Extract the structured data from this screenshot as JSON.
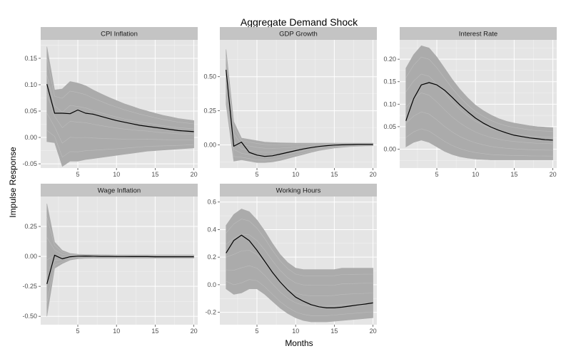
{
  "figure": {
    "title": "Aggregate Demand Shock",
    "xlabel": "Months",
    "ylabel": "Impulse Response"
  },
  "colors": {
    "panel_bg": "#e5e5e5",
    "grid": "#ffffff",
    "strip_bg": "#c4c4c4",
    "band": "#ababab",
    "median": "#000000"
  },
  "chart_data": [
    {
      "type": "line",
      "facet": "CPI Inflation",
      "x": [
        1,
        2,
        3,
        4,
        5,
        6,
        7,
        8,
        9,
        10,
        11,
        12,
        13,
        14,
        15,
        16,
        17,
        18,
        19,
        20
      ],
      "xlim": [
        0.2,
        20.5
      ],
      "xticks": [
        5,
        10,
        15,
        20
      ],
      "ylim": [
        -0.058,
        0.185
      ],
      "yticks": [
        -0.05,
        0.0,
        0.05,
        0.1,
        0.15
      ],
      "ytick_labels": [
        "-0.05",
        "0.00",
        "0.05",
        "0.10",
        "0.15"
      ],
      "series": [
        {
          "role": "median",
          "values": [
            0.101,
            0.046,
            0.046,
            0.045,
            0.052,
            0.046,
            0.044,
            0.04,
            0.036,
            0.032,
            0.029,
            0.026,
            0.023,
            0.021,
            0.019,
            0.017,
            0.015,
            0.013,
            0.012,
            0.011
          ]
        },
        {
          "role": "band_upper",
          "values": [
            0.172,
            0.09,
            0.092,
            0.106,
            0.103,
            0.098,
            0.09,
            0.083,
            0.076,
            0.07,
            0.064,
            0.059,
            0.054,
            0.05,
            0.046,
            0.042,
            0.039,
            0.036,
            0.034,
            0.032
          ]
        },
        {
          "role": "band_lower",
          "values": [
            -0.008,
            -0.01,
            -0.055,
            -0.045,
            -0.045,
            -0.042,
            -0.04,
            -0.038,
            -0.036,
            -0.034,
            -0.032,
            -0.03,
            -0.028,
            -0.026,
            -0.025,
            -0.024,
            -0.023,
            -0.022,
            -0.021,
            -0.02
          ]
        }
      ]
    },
    {
      "type": "line",
      "facet": "GDP Growth",
      "x": [
        1,
        2,
        3,
        4,
        5,
        6,
        7,
        8,
        9,
        10,
        11,
        12,
        13,
        14,
        15,
        16,
        17,
        18,
        19,
        20
      ],
      "xlim": [
        0.2,
        20.5
      ],
      "xticks": [
        5,
        10,
        15,
        20
      ],
      "ylim": [
        -0.17,
        0.77
      ],
      "yticks": [
        0.0,
        0.25,
        0.5
      ],
      "ytick_labels": [
        "0.00",
        "0.25",
        "0.50"
      ],
      "series": [
        {
          "role": "median",
          "values": [
            0.55,
            -0.01,
            0.02,
            -0.055,
            -0.075,
            -0.085,
            -0.08,
            -0.068,
            -0.055,
            -0.042,
            -0.03,
            -0.02,
            -0.012,
            -0.006,
            -0.002,
            0.0,
            0.002,
            0.003,
            0.003,
            0.003
          ]
        },
        {
          "role": "band_upper",
          "values": [
            0.7,
            0.17,
            0.05,
            0.04,
            0.03,
            0.02,
            0.017,
            0.015,
            0.014,
            0.013,
            0.012,
            0.012,
            0.012,
            0.012,
            0.012,
            0.012,
            0.012,
            0.012,
            0.012,
            0.012
          ]
        },
        {
          "role": "band_lower",
          "values": [
            0.3,
            -0.12,
            -0.11,
            -0.12,
            -0.13,
            -0.13,
            -0.125,
            -0.115,
            -0.1,
            -0.085,
            -0.07,
            -0.055,
            -0.042,
            -0.032,
            -0.024,
            -0.018,
            -0.013,
            -0.01,
            -0.008,
            -0.007
          ]
        }
      ]
    },
    {
      "type": "line",
      "facet": "Interest Rate",
      "x": [
        1,
        2,
        3,
        4,
        5,
        6,
        7,
        8,
        9,
        10,
        11,
        12,
        13,
        14,
        15,
        16,
        17,
        18,
        19,
        20
      ],
      "xlim": [
        0.2,
        20.5
      ],
      "xticks": [
        5,
        10,
        15,
        20
      ],
      "ylim": [
        -0.042,
        0.243
      ],
      "yticks": [
        0.0,
        0.05,
        0.1,
        0.15,
        0.2
      ],
      "ytick_labels": [
        "0.00",
        "0.05",
        "0.10",
        "0.15",
        "0.20"
      ],
      "series": [
        {
          "role": "median",
          "values": [
            0.063,
            0.112,
            0.143,
            0.148,
            0.143,
            0.131,
            0.115,
            0.098,
            0.083,
            0.069,
            0.058,
            0.049,
            0.042,
            0.036,
            0.031,
            0.028,
            0.025,
            0.023,
            0.021,
            0.02
          ]
        },
        {
          "role": "band_upper",
          "values": [
            0.18,
            0.21,
            0.23,
            0.225,
            0.205,
            0.18,
            0.155,
            0.133,
            0.114,
            0.098,
            0.086,
            0.076,
            0.068,
            0.062,
            0.058,
            0.055,
            0.052,
            0.05,
            0.049,
            0.048
          ]
        },
        {
          "role": "band_lower",
          "values": [
            0.005,
            0.015,
            0.02,
            0.015,
            0.005,
            -0.005,
            -0.012,
            -0.017,
            -0.02,
            -0.022,
            -0.023,
            -0.024,
            -0.024,
            -0.024,
            -0.024,
            -0.024,
            -0.024,
            -0.024,
            -0.024,
            -0.024
          ]
        }
      ]
    },
    {
      "type": "line",
      "facet": "Wage Inflation",
      "x": [
        1,
        2,
        3,
        4,
        5,
        6,
        7,
        8,
        9,
        10,
        11,
        12,
        13,
        14,
        15,
        16,
        17,
        18,
        19,
        20
      ],
      "xlim": [
        0.2,
        20.5
      ],
      "xticks": [
        5,
        10,
        15,
        20
      ],
      "ylim": [
        -0.57,
        0.5
      ],
      "yticks": [
        -0.5,
        -0.25,
        0.0,
        0.25
      ],
      "ytick_labels": [
        "-0.50",
        "-0.25",
        "0.00",
        "0.25"
      ],
      "series": [
        {
          "role": "median",
          "values": [
            -0.23,
            0.01,
            -0.02,
            -0.003,
            0.002,
            0.003,
            0.002,
            0.0,
            0.0,
            -0.001,
            -0.001,
            -0.002,
            -0.002,
            -0.002,
            -0.003,
            -0.003,
            -0.003,
            -0.003,
            -0.003,
            -0.003
          ]
        },
        {
          "role": "band_upper",
          "values": [
            0.44,
            0.12,
            0.05,
            0.025,
            0.018,
            0.016,
            0.015,
            0.014,
            0.013,
            0.012,
            0.012,
            0.012,
            0.012,
            0.012,
            0.012,
            0.012,
            0.012,
            0.012,
            0.012,
            0.012
          ]
        },
        {
          "role": "band_lower",
          "values": [
            -0.5,
            -0.1,
            -0.06,
            -0.03,
            -0.02,
            -0.016,
            -0.015,
            -0.015,
            -0.015,
            -0.015,
            -0.015,
            -0.015,
            -0.015,
            -0.015,
            -0.015,
            -0.015,
            -0.015,
            -0.015,
            -0.015,
            -0.015
          ]
        }
      ]
    },
    {
      "type": "line",
      "facet": "Working Hours",
      "x": [
        1,
        2,
        3,
        4,
        5,
        6,
        7,
        8,
        9,
        10,
        11,
        12,
        13,
        14,
        15,
        16,
        17,
        18,
        19,
        20
      ],
      "xlim": [
        0.2,
        20.5
      ],
      "xticks": [
        5,
        10,
        15,
        20
      ],
      "ylim": [
        -0.29,
        0.64
      ],
      "yticks": [
        -0.2,
        0.0,
        0.2,
        0.4,
        0.6
      ],
      "ytick_labels": [
        "-0.2",
        "0.0",
        "0.2",
        "0.4",
        "0.6"
      ],
      "series": [
        {
          "role": "median",
          "values": [
            0.23,
            0.32,
            0.36,
            0.32,
            0.25,
            0.17,
            0.09,
            0.02,
            -0.04,
            -0.09,
            -0.12,
            -0.145,
            -0.16,
            -0.168,
            -0.168,
            -0.163,
            -0.155,
            -0.147,
            -0.14,
            -0.132
          ]
        },
        {
          "role": "band_upper",
          "values": [
            0.43,
            0.51,
            0.55,
            0.53,
            0.47,
            0.39,
            0.3,
            0.22,
            0.16,
            0.12,
            0.11,
            0.11,
            0.11,
            0.11,
            0.11,
            0.12,
            0.12,
            0.12,
            0.12,
            0.12
          ]
        },
        {
          "role": "band_lower",
          "values": [
            -0.03,
            -0.07,
            -0.06,
            -0.03,
            -0.03,
            -0.07,
            -0.12,
            -0.17,
            -0.21,
            -0.24,
            -0.26,
            -0.27,
            -0.27,
            -0.27,
            -0.265,
            -0.26,
            -0.255,
            -0.25,
            -0.245,
            -0.24
          ]
        }
      ]
    }
  ]
}
